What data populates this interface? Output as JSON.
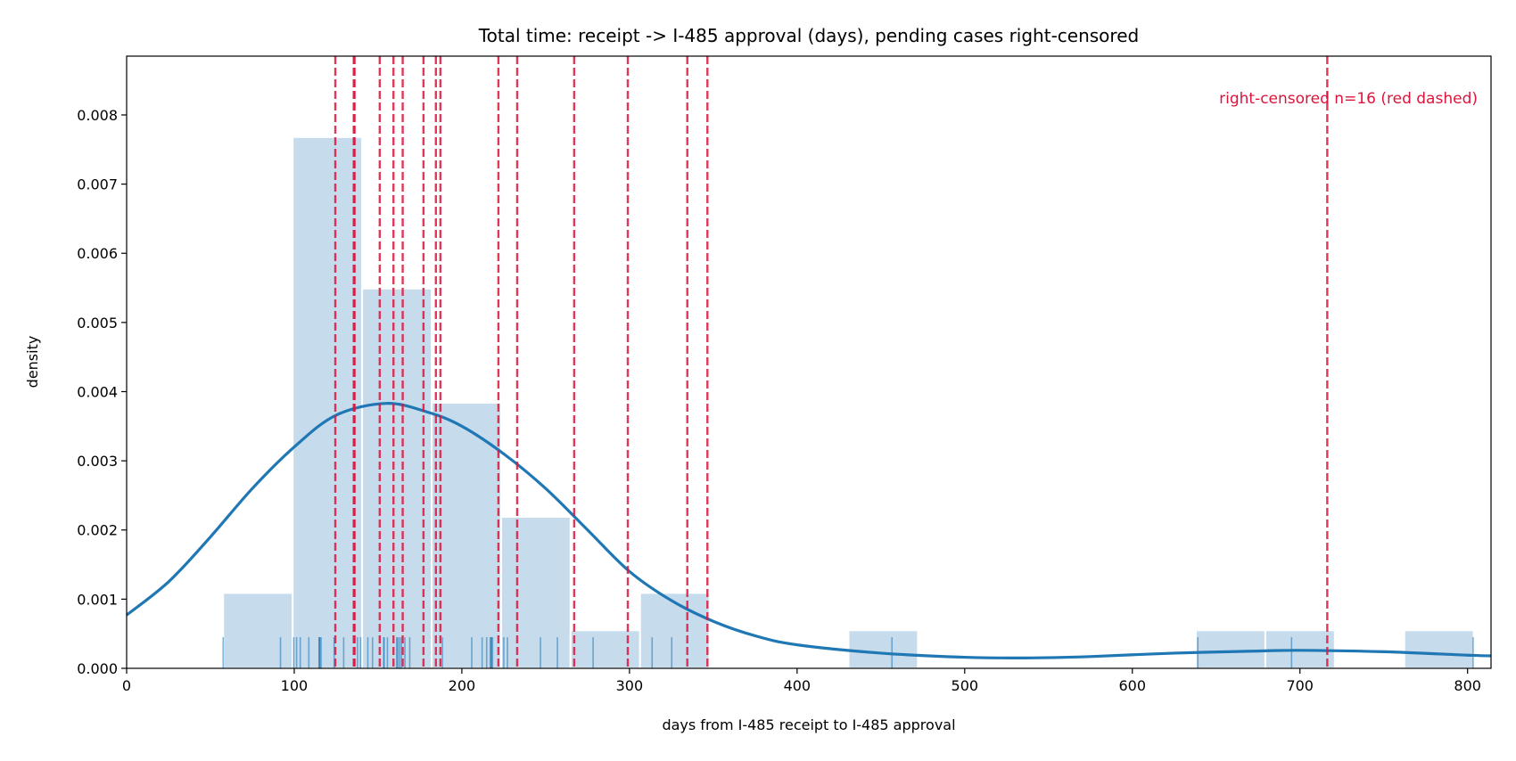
{
  "chart_data": {
    "type": "histogram+kde+rug",
    "title": "Total time: receipt -> I-485 approval (days), pending cases right-censored",
    "xlabel": "days from I-485 receipt to I-485 approval",
    "ylabel": "density",
    "xlim": [
      0,
      814
    ],
    "ylim": [
      0,
      0.00885
    ],
    "xticks": [
      0,
      100,
      200,
      300,
      400,
      500,
      600,
      700,
      800
    ],
    "yticks": [
      "0.000",
      "0.001",
      "0.002",
      "0.003",
      "0.004",
      "0.005",
      "0.006",
      "0.007",
      "0.008"
    ],
    "grid": false,
    "histogram": {
      "bin_start": 57.6,
      "bin_width": 41.45,
      "values": [
        0.00109,
        0.00768,
        0.00549,
        0.00384,
        0.00219,
        0.00055,
        0.00109,
        0,
        0,
        0.00055,
        0,
        0,
        0,
        0,
        0.00055,
        0.00055,
        0,
        0.00055
      ],
      "color": "#c6dbec"
    },
    "kde": {
      "color": "#1f77b4",
      "x": [
        0,
        25,
        50,
        75,
        100,
        125,
        155,
        180,
        200,
        225,
        250,
        275,
        300,
        325,
        350,
        375,
        400,
        450,
        500,
        535,
        575,
        625,
        675,
        700,
        750,
        800,
        814
      ],
      "y": [
        0.00077,
        0.00125,
        0.0019,
        0.0026,
        0.0032,
        0.00366,
        0.00383,
        0.0037,
        0.0035,
        0.0031,
        0.0026,
        0.002,
        0.0014,
        0.00098,
        0.00068,
        0.00047,
        0.00034,
        0.00022,
        0.00016,
        0.00015,
        0.00017,
        0.00022,
        0.00025,
        0.00026,
        0.00024,
        0.00019,
        0.00018
      ]
    },
    "rug": {
      "color": "#1f77b4",
      "values": [
        57.6,
        91.8,
        99.7,
        101.4,
        103.6,
        108.7,
        114.8,
        115.0,
        115.3,
        116,
        123.8,
        129.5,
        137.7,
        139.6,
        143.9,
        146.7,
        153.5,
        153.5,
        155.6,
        161.1,
        161.8,
        162.9,
        164,
        166,
        168.9,
        188.4,
        205.9,
        212.1,
        214.8,
        216.9,
        217.6,
        217.6,
        218.3,
        225,
        227.2,
        246.9,
        257,
        278.3,
        313.5,
        325.2,
        456.6,
        639.1,
        695,
        803.3
      ]
    },
    "censored": {
      "color": "#dc143c",
      "label": "right-censored n=16 (red dashed)",
      "values": [
        124.5,
        135.5,
        136.0,
        151,
        159.2,
        164.7,
        177.1,
        184.5,
        187.2,
        221.8,
        233,
        267,
        299,
        334.5,
        346.5,
        716.3
      ]
    }
  }
}
